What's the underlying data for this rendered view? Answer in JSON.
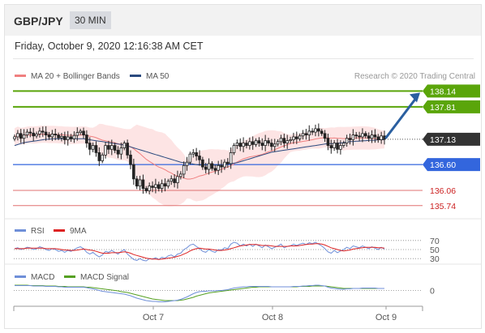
{
  "header": {
    "pair": "GBP/JPY",
    "timeframe": "30 MIN"
  },
  "date": "Friday, October 9, 2020 12:16:38 AM CET",
  "credit": "Research © 2020 Trading Central",
  "colors": {
    "ma20": "#f08080",
    "ma50": "#2a4a7f",
    "bands": "#fcd5d5",
    "resistance": "#5aa50a",
    "support_blue": "#3366dd",
    "support_red": "#e07070",
    "current": "#333333",
    "arrow": "#2a5fa0",
    "candle": "#222222",
    "rsi": "#6f8fd8",
    "rsi_ma": "#dd2222",
    "macd": "#6f8fd8",
    "macd_signal": "#55a022"
  },
  "chart_data": [
    {
      "type": "candlestick",
      "name": "GBP/JPY 30 MIN",
      "legend": [
        {
          "label": "MA 20 + Bollinger Bands",
          "color": "#f08080"
        },
        {
          "label": "MA 50",
          "color": "#2a4a7f"
        }
      ],
      "x_labels": [
        "Oct 7",
        "Oct 8",
        "Oct 9"
      ],
      "ylim": [
        135.55,
        138.35
      ],
      "closes": [
        137.18,
        137.25,
        137.15,
        137.22,
        137.28,
        137.26,
        137.2,
        137.24,
        137.3,
        137.28,
        137.22,
        137.18,
        137.24,
        137.22,
        137.16,
        137.19,
        137.12,
        137.18,
        137.14,
        137.21,
        137.27,
        137.3,
        137.22,
        137.05,
        136.92,
        137.0,
        136.85,
        136.68,
        136.8,
        137.0,
        136.92,
        137.0,
        136.9,
        136.82,
        136.95,
        137.05,
        136.8,
        136.6,
        136.3,
        136.15,
        136.28,
        136.1,
        136.05,
        136.15,
        136.12,
        136.18,
        136.1,
        136.2,
        136.15,
        136.25,
        136.3,
        136.22,
        136.35,
        136.4,
        136.58,
        136.65,
        136.82,
        136.85,
        136.78,
        136.7,
        136.55,
        136.5,
        136.62,
        136.52,
        136.48,
        136.58,
        136.55,
        136.65,
        136.62,
        136.85,
        137.0,
        137.05,
        136.98,
        137.05,
        137.0,
        137.08,
        137.02,
        137.1,
        137.05,
        137.0,
        137.1,
        137.05,
        136.98,
        137.03,
        137.08,
        137.15,
        137.05,
        137.1,
        137.12,
        137.18,
        137.14,
        137.2,
        137.25,
        137.22,
        137.3,
        137.28,
        137.35,
        137.3,
        137.25,
        137.15,
        137.0,
        136.95,
        137.05,
        136.92,
        137.0,
        137.05,
        137.15,
        137.12,
        137.22,
        137.2,
        137.18,
        137.25,
        137.2,
        137.15,
        137.22,
        137.18,
        137.12,
        137.2,
        137.13
      ],
      "ma50": [
        137.0,
        137.02,
        137.04,
        137.06,
        137.07,
        137.08,
        137.09,
        137.1,
        137.11,
        137.12,
        137.13,
        137.13,
        137.14,
        137.14,
        137.14,
        137.14,
        137.14,
        137.14,
        137.14,
        137.14,
        137.14,
        137.14,
        137.14,
        137.13,
        137.12,
        137.11,
        137.1,
        137.09,
        137.08,
        137.07,
        137.06,
        137.05,
        137.04,
        137.03,
        137.02,
        137.01,
        136.99,
        136.97,
        136.95,
        136.93,
        136.91,
        136.89,
        136.87,
        136.85,
        136.83,
        136.81,
        136.79,
        136.77,
        136.75,
        136.73,
        136.71,
        136.69,
        136.67,
        136.65,
        136.64,
        136.63,
        136.62,
        136.61,
        136.6,
        136.59,
        136.59,
        136.59,
        136.59,
        136.59,
        136.59,
        136.59,
        136.6,
        136.6,
        136.61,
        136.62,
        136.63,
        136.64,
        136.66,
        136.68,
        136.7,
        136.72,
        136.74,
        136.76,
        136.78,
        136.8,
        136.82,
        136.84,
        136.86,
        136.87,
        136.88,
        136.89,
        136.9,
        136.91,
        136.92,
        136.93,
        136.94,
        136.95,
        136.96,
        136.97,
        136.98,
        136.99,
        137.0,
        137.01,
        137.02,
        137.03,
        137.04,
        137.04,
        137.04,
        137.05,
        137.05,
        137.06,
        137.07,
        137.08,
        137.08,
        137.09,
        137.09,
        137.1,
        137.1,
        137.11,
        137.11,
        137.11,
        137.12,
        137.12,
        137.12
      ],
      "resistance": [
        {
          "label": "138.14",
          "value": 138.14
        },
        {
          "label": "137.81",
          "value": 137.81
        }
      ],
      "current": {
        "label": "137.13",
        "value": 137.13
      },
      "pivot": {
        "label": "136.60",
        "value": 136.6
      },
      "support": [
        {
          "label": "136.06",
          "value": 136.06
        },
        {
          "label": "135.74",
          "value": 135.74
        }
      ],
      "target_arrow": {
        "from": 137.13,
        "to": 138.14
      }
    },
    {
      "type": "line",
      "name": "RSI",
      "legend": [
        {
          "label": "RSI",
          "color": "#6f8fd8"
        },
        {
          "label": "9MA",
          "color": "#dd2222"
        }
      ],
      "ylim": [
        25,
        75
      ],
      "levels": [
        {
          "label": "70",
          "value": 70
        },
        {
          "label": "50",
          "value": 50
        },
        {
          "label": "30",
          "value": 30
        }
      ],
      "rsi": [
        52,
        54,
        50,
        52,
        55,
        54,
        50,
        52,
        56,
        54,
        50,
        48,
        52,
        50,
        46,
        48,
        44,
        48,
        46,
        50,
        54,
        56,
        52,
        44,
        40,
        44,
        38,
        34,
        38,
        46,
        44,
        48,
        44,
        40,
        46,
        50,
        40,
        34,
        28,
        26,
        30,
        26,
        25,
        30,
        29,
        32,
        28,
        33,
        31,
        36,
        38,
        34,
        40,
        42,
        50,
        54,
        60,
        62,
        57,
        52,
        46,
        44,
        50,
        46,
        44,
        50,
        49,
        54,
        52,
        62,
        66,
        64,
        58,
        62,
        58,
        62,
        57,
        62,
        58,
        54,
        60,
        56,
        52,
        55,
        58,
        62,
        54,
        57,
        58,
        62,
        59,
        62,
        64,
        61,
        65,
        63,
        66,
        62,
        58,
        52,
        45,
        42,
        48,
        43,
        47,
        50,
        55,
        52,
        58,
        56,
        54,
        58,
        55,
        52,
        56,
        53,
        50,
        55,
        51
      ],
      "rsi_ma": [
        52,
        52,
        52,
        52,
        53,
        53,
        53,
        53,
        53,
        53,
        52,
        52,
        52,
        52,
        51,
        50,
        49,
        49,
        48,
        48,
        49,
        50,
        51,
        50,
        49,
        48,
        46,
        44,
        42,
        42,
        42,
        43,
        43,
        43,
        44,
        45,
        44,
        42,
        39,
        37,
        35,
        33,
        31,
        30,
        29,
        29,
        28,
        29,
        30,
        31,
        32,
        33,
        35,
        37,
        40,
        43,
        47,
        50,
        52,
        53,
        52,
        51,
        51,
        50,
        49,
        48,
        48,
        49,
        50,
        52,
        54,
        56,
        58,
        59,
        60,
        61,
        61,
        61,
        60,
        59,
        59,
        59,
        58,
        57,
        57,
        57,
        57,
        57,
        58,
        58,
        58,
        59,
        60,
        61,
        62,
        62,
        63,
        63,
        62,
        60,
        57,
        54,
        52,
        50,
        48,
        47,
        48,
        49,
        51,
        52,
        53,
        54,
        55,
        55,
        55,
        55,
        54,
        54,
        53
      ]
    },
    {
      "type": "line",
      "name": "MACD",
      "legend": [
        {
          "label": "MACD",
          "color": "#6f8fd8"
        },
        {
          "label": "MACD Signal",
          "color": "#55a022"
        }
      ],
      "ylim": [
        -0.35,
        0.25
      ],
      "zero_label": "0",
      "macd": [
        0.12,
        0.12,
        0.12,
        0.12,
        0.12,
        0.12,
        0.11,
        0.11,
        0.11,
        0.11,
        0.1,
        0.1,
        0.1,
        0.1,
        0.09,
        0.09,
        0.08,
        0.08,
        0.08,
        0.08,
        0.08,
        0.08,
        0.08,
        0.07,
        0.05,
        0.04,
        0.02,
        0.0,
        -0.02,
        -0.03,
        -0.04,
        -0.05,
        -0.06,
        -0.07,
        -0.08,
        -0.09,
        -0.11,
        -0.13,
        -0.16,
        -0.19,
        -0.21,
        -0.23,
        -0.25,
        -0.26,
        -0.27,
        -0.27,
        -0.28,
        -0.28,
        -0.28,
        -0.27,
        -0.26,
        -0.25,
        -0.24,
        -0.22,
        -0.19,
        -0.16,
        -0.12,
        -0.08,
        -0.05,
        -0.03,
        -0.02,
        -0.02,
        -0.01,
        -0.01,
        -0.01,
        0.0,
        0.0,
        0.01,
        0.02,
        0.04,
        0.06,
        0.07,
        0.08,
        0.09,
        0.09,
        0.1,
        0.1,
        0.1,
        0.1,
        0.1,
        0.1,
        0.1,
        0.09,
        0.09,
        0.09,
        0.09,
        0.09,
        0.09,
        0.09,
        0.1,
        0.1,
        0.1,
        0.11,
        0.11,
        0.12,
        0.12,
        0.13,
        0.13,
        0.12,
        0.11,
        0.08,
        0.06,
        0.05,
        0.04,
        0.03,
        0.03,
        0.04,
        0.04,
        0.05,
        0.05,
        0.05,
        0.06,
        0.06,
        0.06,
        0.06,
        0.06,
        0.05,
        0.05,
        0.05
      ],
      "macd_signal": [
        0.13,
        0.13,
        0.13,
        0.13,
        0.13,
        0.12,
        0.12,
        0.12,
        0.12,
        0.12,
        0.11,
        0.11,
        0.11,
        0.11,
        0.1,
        0.1,
        0.1,
        0.09,
        0.09,
        0.09,
        0.09,
        0.09,
        0.09,
        0.08,
        0.08,
        0.07,
        0.06,
        0.05,
        0.04,
        0.03,
        0.02,
        0.01,
        0.0,
        -0.01,
        -0.03,
        -0.04,
        -0.05,
        -0.07,
        -0.09,
        -0.11,
        -0.13,
        -0.15,
        -0.17,
        -0.19,
        -0.21,
        -0.22,
        -0.23,
        -0.24,
        -0.25,
        -0.25,
        -0.25,
        -0.25,
        -0.25,
        -0.24,
        -0.23,
        -0.21,
        -0.19,
        -0.17,
        -0.14,
        -0.12,
        -0.1,
        -0.08,
        -0.06,
        -0.05,
        -0.04,
        -0.03,
        -0.02,
        -0.01,
        0.0,
        0.01,
        0.02,
        0.03,
        0.04,
        0.05,
        0.06,
        0.07,
        0.08,
        0.08,
        0.09,
        0.09,
        0.09,
        0.09,
        0.09,
        0.09,
        0.09,
        0.09,
        0.09,
        0.09,
        0.09,
        0.09,
        0.09,
        0.1,
        0.1,
        0.1,
        0.1,
        0.11,
        0.11,
        0.11,
        0.11,
        0.11,
        0.1,
        0.09,
        0.08,
        0.07,
        0.06,
        0.05,
        0.05,
        0.05,
        0.05,
        0.05,
        0.05,
        0.05,
        0.05,
        0.05,
        0.05,
        0.05,
        0.05,
        0.05,
        0.05
      ]
    }
  ]
}
